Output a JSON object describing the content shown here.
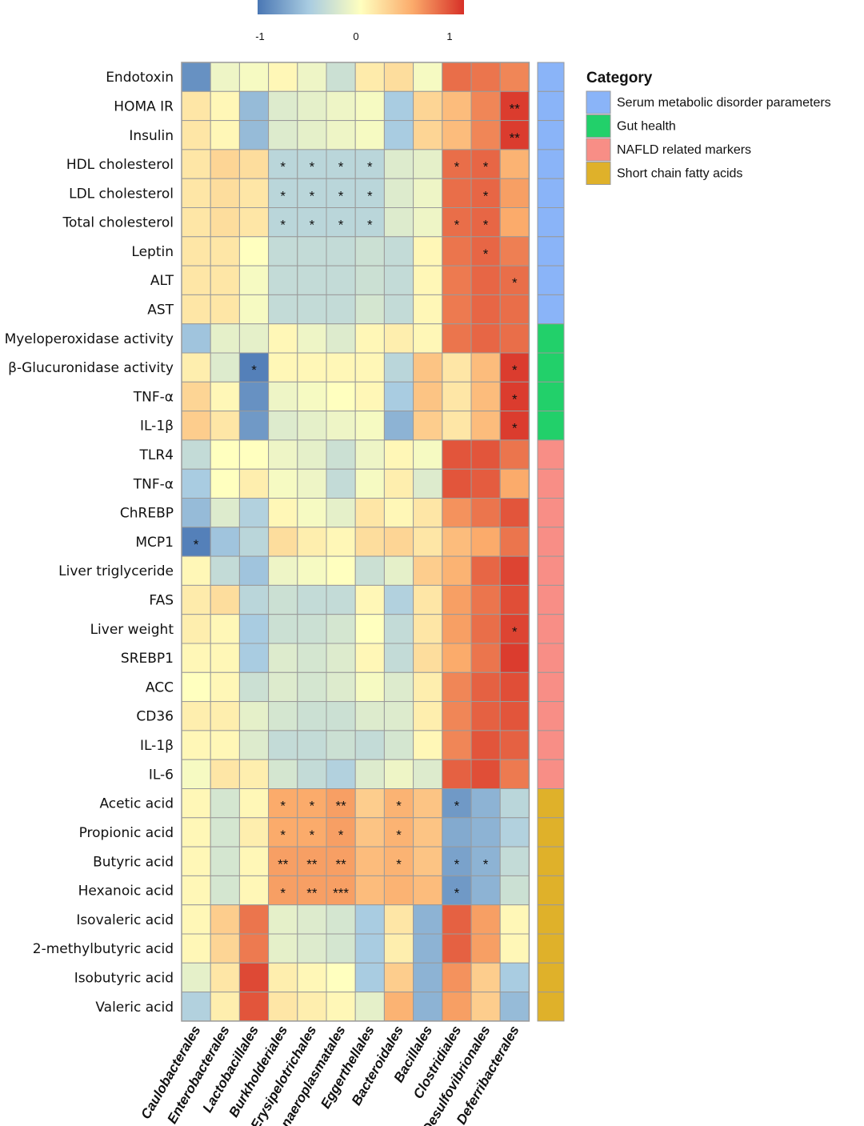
{
  "chart_data": {
    "type": "heatmap",
    "title": "",
    "colorbar": {
      "range": [
        -1,
        1
      ],
      "ticks": [
        "-1",
        "0",
        "1"
      ],
      "colors": [
        "#4a77b4",
        "#ffffbf",
        "#d73027"
      ]
    },
    "columns": [
      "Caulobacterales",
      "Enterobacterales",
      "Lactobacillales",
      "Burkholderiales",
      "Erysipelotrichales",
      "Anaeroplasmatales",
      "Eggerthellales",
      "Bacteroidales",
      "Bacillales",
      "Clostridiales",
      "Desulfovibrionales",
      "Deferribacterales"
    ],
    "rows": [
      {
        "label": "Endotoxin",
        "category": 0,
        "values": [
          -0.85,
          -0.1,
          -0.05,
          0.05,
          -0.1,
          -0.3,
          0.12,
          0.2,
          -0.05,
          0.75,
          0.72,
          0.65
        ],
        "sig": [
          "",
          "",
          "",
          "",
          "",
          "",
          "",
          "",
          "",
          "",
          "",
          ""
        ]
      },
      {
        "label": "HOMA IR",
        "category": 0,
        "values": [
          0.15,
          0.05,
          -0.6,
          -0.2,
          -0.15,
          -0.1,
          -0.05,
          -0.5,
          0.25,
          0.4,
          0.65,
          0.95
        ],
        "sig": [
          "",
          "",
          "",
          "",
          "",
          "",
          "",
          "",
          "",
          "",
          "",
          "**"
        ]
      },
      {
        "label": "Insulin",
        "category": 0,
        "values": [
          0.15,
          0.05,
          -0.6,
          -0.2,
          -0.15,
          -0.1,
          -0.05,
          -0.5,
          0.25,
          0.4,
          0.65,
          0.95
        ],
        "sig": [
          "",
          "",
          "",
          "",
          "",
          "",
          "",
          "",
          "",
          "",
          "",
          "**"
        ]
      },
      {
        "label": "HDL cholesterol",
        "category": 0,
        "values": [
          0.15,
          0.25,
          0.2,
          -0.4,
          -0.4,
          -0.4,
          -0.4,
          -0.2,
          -0.15,
          0.75,
          0.78,
          0.45
        ],
        "sig": [
          "",
          "",
          "",
          "*",
          "*",
          "*",
          "*",
          "",
          "",
          "*",
          "*",
          ""
        ]
      },
      {
        "label": "LDL cholesterol",
        "category": 0,
        "values": [
          0.15,
          0.2,
          0.15,
          -0.4,
          -0.4,
          -0.4,
          -0.4,
          -0.2,
          -0.1,
          0.75,
          0.78,
          0.55
        ],
        "sig": [
          "",
          "",
          "",
          "*",
          "*",
          "*",
          "*",
          "",
          "",
          "",
          "*",
          ""
        ]
      },
      {
        "label": "Total cholesterol",
        "category": 0,
        "values": [
          0.15,
          0.2,
          0.15,
          -0.4,
          -0.4,
          -0.4,
          -0.4,
          -0.2,
          -0.1,
          0.75,
          0.78,
          0.5
        ],
        "sig": [
          "",
          "",
          "",
          "*",
          "*",
          "*",
          "*",
          "",
          "",
          "*",
          "*",
          ""
        ]
      },
      {
        "label": "Leptin",
        "category": 0,
        "values": [
          0.15,
          0.15,
          0.0,
          -0.35,
          -0.35,
          -0.35,
          -0.3,
          -0.35,
          0.05,
          0.72,
          0.78,
          0.68
        ],
        "sig": [
          "",
          "",
          "",
          "",
          "",
          "",
          "",
          "",
          "",
          "",
          "*",
          ""
        ]
      },
      {
        "label": "ALT",
        "category": 0,
        "values": [
          0.15,
          0.15,
          -0.05,
          -0.35,
          -0.35,
          -0.35,
          -0.3,
          -0.35,
          0.05,
          0.7,
          0.78,
          0.75
        ],
        "sig": [
          "",
          "",
          "",
          "",
          "",
          "",
          "",
          "",
          "",
          "",
          "",
          "*"
        ]
      },
      {
        "label": "AST",
        "category": 0,
        "values": [
          0.15,
          0.15,
          -0.05,
          -0.35,
          -0.35,
          -0.35,
          -0.25,
          -0.35,
          0.05,
          0.7,
          0.78,
          0.75
        ],
        "sig": [
          "",
          "",
          "",
          "",
          "",
          "",
          "",
          "",
          "",
          "",
          "",
          ""
        ]
      },
      {
        "label": "Myeloperoxidase activity",
        "category": 1,
        "values": [
          -0.55,
          -0.15,
          -0.15,
          0.05,
          -0.1,
          -0.2,
          0.05,
          0.1,
          0.05,
          0.72,
          0.78,
          0.75
        ],
        "sig": [
          "",
          "",
          "",
          "",
          "",
          "",
          "",
          "",
          "",
          "",
          "",
          ""
        ]
      },
      {
        "label": "β-Glucuronidase activity",
        "category": 1,
        "values": [
          0.1,
          -0.2,
          -0.95,
          0.05,
          0.05,
          0.05,
          0.05,
          -0.4,
          0.35,
          0.15,
          0.4,
          0.95
        ],
        "sig": [
          "",
          "",
          "*",
          "",
          "",
          "",
          "",
          "",
          "",
          "",
          "",
          "*"
        ]
      },
      {
        "label": "TNF-α",
        "category": 1,
        "values": [
          0.25,
          0.05,
          -0.85,
          -0.1,
          -0.05,
          0.0,
          0.05,
          -0.5,
          0.35,
          0.15,
          0.4,
          0.95
        ],
        "sig": [
          "",
          "",
          "",
          "",
          "",
          "",
          "",
          "",
          "",
          "",
          "",
          "*"
        ]
      },
      {
        "label": "IL-1β",
        "category": 1,
        "values": [
          0.3,
          0.15,
          -0.8,
          -0.2,
          -0.15,
          -0.1,
          -0.05,
          -0.65,
          0.3,
          0.15,
          0.4,
          0.95
        ],
        "sig": [
          "",
          "",
          "",
          "",
          "",
          "",
          "",
          "",
          "",
          "",
          "",
          "*"
        ]
      },
      {
        "label": "TLR4",
        "category": 2,
        "values": [
          -0.35,
          0.0,
          0.0,
          -0.1,
          -0.15,
          -0.3,
          -0.1,
          0.05,
          -0.05,
          0.85,
          0.85,
          0.72
        ],
        "sig": [
          "",
          "",
          "",
          "",
          "",
          "",
          "",
          "",
          "",
          "",
          "",
          ""
        ]
      },
      {
        "label": "TNF-α",
        "category": 2,
        "values": [
          -0.5,
          0.0,
          0.1,
          -0.05,
          -0.1,
          -0.35,
          -0.05,
          0.1,
          -0.2,
          0.85,
          0.82,
          0.5
        ],
        "sig": [
          "",
          "",
          "",
          "",
          "",
          "",
          "",
          "",
          "",
          "",
          "",
          ""
        ]
      },
      {
        "label": "ChREBP",
        "category": 2,
        "values": [
          -0.6,
          -0.2,
          -0.45,
          0.05,
          -0.05,
          -0.15,
          0.15,
          0.05,
          0.15,
          0.6,
          0.72,
          0.85
        ],
        "sig": [
          "",
          "",
          "",
          "",
          "",
          "",
          "",
          "",
          "",
          "",
          "",
          ""
        ]
      },
      {
        "label": "MCP1",
        "category": 2,
        "values": [
          -0.95,
          -0.55,
          -0.4,
          0.2,
          0.1,
          0.05,
          0.2,
          0.25,
          0.15,
          0.4,
          0.5,
          0.72
        ],
        "sig": [
          "*",
          "",
          "",
          "",
          "",
          "",
          "",
          "",
          "",
          "",
          "",
          ""
        ]
      },
      {
        "label": "Liver triglyceride",
        "category": 2,
        "values": [
          0.05,
          -0.35,
          -0.55,
          -0.1,
          -0.05,
          0.0,
          -0.3,
          -0.15,
          0.3,
          0.45,
          0.78,
          0.92
        ],
        "sig": [
          "",
          "",
          "",
          "",
          "",
          "",
          "",
          "",
          "",
          "",
          "",
          ""
        ]
      },
      {
        "label": "FAS",
        "category": 2,
        "values": [
          0.12,
          0.2,
          -0.4,
          -0.3,
          -0.35,
          -0.35,
          0.05,
          -0.45,
          0.15,
          0.55,
          0.72,
          0.88
        ],
        "sig": [
          "",
          "",
          "",
          "",
          "",
          "",
          "",
          "",
          "",
          "",
          "",
          ""
        ]
      },
      {
        "label": "Liver weight",
        "category": 2,
        "values": [
          0.1,
          0.05,
          -0.5,
          -0.3,
          -0.3,
          -0.25,
          0.0,
          -0.35,
          0.15,
          0.55,
          0.75,
          0.92
        ],
        "sig": [
          "",
          "",
          "",
          "",
          "",
          "",
          "",
          "",
          "",
          "",
          "",
          "*"
        ]
      },
      {
        "label": "SREBP1",
        "category": 2,
        "values": [
          0.05,
          0.05,
          -0.5,
          -0.2,
          -0.25,
          -0.2,
          0.05,
          -0.35,
          0.2,
          0.5,
          0.72,
          0.95
        ],
        "sig": [
          "",
          "",
          "",
          "",
          "",
          "",
          "",
          "",
          "",
          "",
          "",
          ""
        ]
      },
      {
        "label": "ACC",
        "category": 2,
        "values": [
          0.0,
          0.05,
          -0.3,
          -0.2,
          -0.25,
          -0.2,
          -0.05,
          -0.2,
          0.1,
          0.65,
          0.8,
          0.88
        ],
        "sig": [
          "",
          "",
          "",
          "",
          "",
          "",
          "",
          "",
          "",
          "",
          "",
          ""
        ]
      },
      {
        "label": "CD36",
        "category": 2,
        "values": [
          0.1,
          0.1,
          -0.15,
          -0.25,
          -0.3,
          -0.3,
          -0.2,
          -0.2,
          0.1,
          0.65,
          0.8,
          0.85
        ],
        "sig": [
          "",
          "",
          "",
          "",
          "",
          "",
          "",
          "",
          "",
          "",
          "",
          ""
        ]
      },
      {
        "label": "IL-1β",
        "category": 2,
        "values": [
          0.05,
          0.05,
          -0.2,
          -0.35,
          -0.35,
          -0.3,
          -0.35,
          -0.25,
          0.05,
          0.65,
          0.85,
          0.8
        ],
        "sig": [
          "",
          "",
          "",
          "",
          "",
          "",
          "",
          "",
          "",
          "",
          "",
          ""
        ]
      },
      {
        "label": "IL-6",
        "category": 2,
        "values": [
          -0.05,
          0.15,
          0.1,
          -0.25,
          -0.35,
          -0.45,
          -0.2,
          -0.1,
          -0.2,
          0.8,
          0.88,
          0.7
        ],
        "sig": [
          "",
          "",
          "",
          "",
          "",
          "",
          "",
          "",
          "",
          "",
          "",
          ""
        ]
      },
      {
        "label": "Acetic acid",
        "category": 3,
        "values": [
          0.05,
          -0.25,
          0.05,
          0.5,
          0.5,
          0.55,
          0.3,
          0.45,
          0.35,
          -0.8,
          -0.65,
          -0.4
        ],
        "sig": [
          "",
          "",
          "",
          "*",
          "*",
          "**",
          "",
          "*",
          "",
          "*",
          "",
          ""
        ]
      },
      {
        "label": "Propionic acid",
        "category": 3,
        "values": [
          0.05,
          -0.25,
          0.1,
          0.5,
          0.5,
          0.55,
          0.35,
          0.45,
          0.35,
          -0.7,
          -0.65,
          -0.45
        ],
        "sig": [
          "",
          "",
          "",
          "*",
          "*",
          "*",
          "",
          "*",
          "",
          "",
          "",
          ""
        ]
      },
      {
        "label": "Butyric acid",
        "category": 3,
        "values": [
          0.05,
          -0.25,
          0.05,
          0.55,
          0.55,
          0.55,
          0.4,
          0.45,
          0.35,
          -0.75,
          -0.65,
          -0.35
        ],
        "sig": [
          "",
          "",
          "",
          "**",
          "**",
          "**",
          "",
          "*",
          "",
          "*",
          "*",
          ""
        ]
      },
      {
        "label": "Hexanoic acid",
        "category": 3,
        "values": [
          0.05,
          -0.25,
          0.05,
          0.55,
          0.55,
          0.55,
          0.4,
          0.45,
          0.4,
          -0.8,
          -0.65,
          -0.3
        ],
        "sig": [
          "",
          "",
          "",
          "*",
          "**",
          "***",
          "",
          "",
          "",
          "*",
          "",
          ""
        ]
      },
      {
        "label": "Isovaleric acid",
        "category": 3,
        "values": [
          0.05,
          0.3,
          0.72,
          -0.15,
          -0.2,
          -0.25,
          -0.5,
          0.15,
          -0.65,
          0.8,
          0.55,
          0.05
        ],
        "sig": [
          "",
          "",
          "",
          "",
          "",
          "",
          "",
          "",
          "",
          "",
          "",
          ""
        ]
      },
      {
        "label": "2-methylbutyric acid",
        "category": 3,
        "values": [
          0.05,
          0.25,
          0.7,
          -0.15,
          -0.2,
          -0.25,
          -0.5,
          0.1,
          -0.65,
          0.8,
          0.55,
          0.05
        ],
        "sig": [
          "",
          "",
          "",
          "",
          "",
          "",
          "",
          "",
          "",
          "",
          "",
          ""
        ]
      },
      {
        "label": "Isobutyric acid",
        "category": 3,
        "values": [
          -0.15,
          0.15,
          0.9,
          0.1,
          0.05,
          0.0,
          -0.5,
          0.3,
          -0.65,
          0.6,
          0.3,
          -0.5
        ],
        "sig": [
          "",
          "",
          "",
          "",
          "",
          "",
          "",
          "",
          "",
          "",
          "",
          ""
        ]
      },
      {
        "label": "Valeric acid",
        "category": 3,
        "values": [
          -0.45,
          0.1,
          0.85,
          0.15,
          0.1,
          0.05,
          -0.15,
          0.45,
          -0.65,
          0.55,
          0.3,
          -0.6
        ],
        "sig": [
          "",
          "",
          "",
          "",
          "",
          "",
          "",
          "",
          "",
          "",
          "",
          ""
        ]
      }
    ],
    "categories": [
      {
        "name": "Serum metabolic disorder parameters",
        "color": "#8ab4f8"
      },
      {
        "name": "Gut health",
        "color": "#22d06a"
      },
      {
        "name": "NAFLD related markers",
        "color": "#f88e86"
      },
      {
        "name": "Short chain fatty acids",
        "color": "#dfb12a"
      }
    ],
    "legend_title": "Category",
    "legend_position": "top-right"
  }
}
